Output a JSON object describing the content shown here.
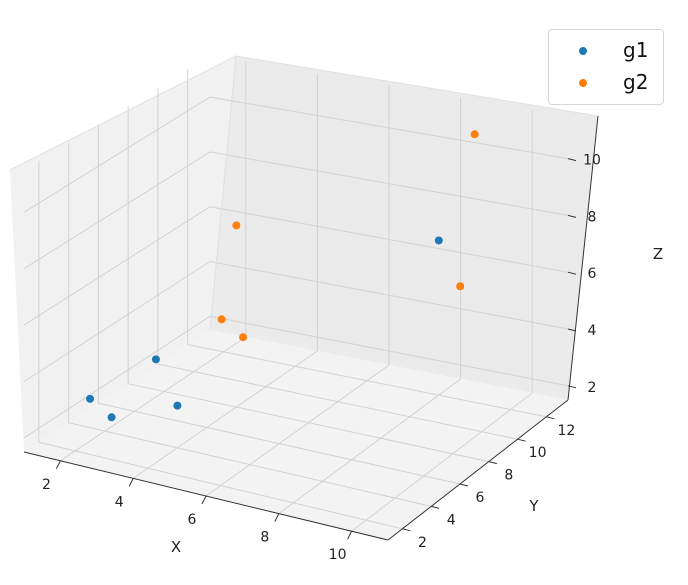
{
  "chart_data": {
    "type": "scatter",
    "projection": "3d",
    "xlabel": "X",
    "ylabel": "Y",
    "zlabel": "Z",
    "x_ticks": [
      "2",
      "4",
      "6",
      "8",
      "10"
    ],
    "y_ticks": [
      "2",
      "4",
      "6",
      "8",
      "10",
      "12"
    ],
    "z_ticks": [
      "2",
      "4",
      "6",
      "8",
      "10"
    ],
    "xlim": [
      1,
      11
    ],
    "ylim": [
      1,
      13.5
    ],
    "zlim": [
      1.5,
      11.5
    ],
    "grid": true,
    "legend_position": "top-right",
    "series": [
      {
        "name": "g1",
        "color": "#1f77b4",
        "points": [
          {
            "x": 2,
            "y": 3,
            "z": 3
          },
          {
            "x": 3,
            "y": 2,
            "z": 3
          },
          {
            "x": 4,
            "y": 4,
            "z": 3
          },
          {
            "x": 3,
            "y": 5,
            "z": 4
          },
          {
            "x": 8,
            "y": 12,
            "z": 7
          }
        ]
      },
      {
        "name": "g2",
        "color": "#ff7f0e",
        "points": [
          {
            "x": 4,
            "y": 7,
            "z": 5
          },
          {
            "x": 5,
            "y": 6,
            "z": 5
          },
          {
            "x": 4,
            "y": 8,
            "z": 8
          },
          {
            "x": 9,
            "y": 11,
            "z": 6
          },
          {
            "x": 9,
            "y": 12,
            "z": 11
          }
        ]
      }
    ]
  }
}
